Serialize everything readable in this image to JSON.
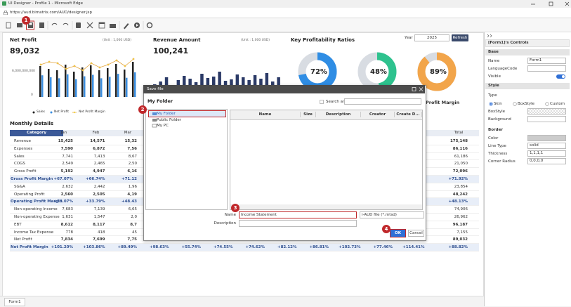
{
  "window": {
    "title": "UI Designer - Profile 1 - Microsoft Edge",
    "url": "https://aud.bimatrix.com/AUD/designer.jsp"
  },
  "callouts": [
    "1",
    "2",
    "3",
    "4"
  ],
  "dashboard": {
    "net_profit": {
      "title": "Net Profit",
      "value": "89,032",
      "unit": "(Unit : 1,000 USD)",
      "axis": [
        "6,000,000,000",
        "0"
      ],
      "legend": [
        "Sales",
        "Net Profit",
        "Net Profit Margin"
      ]
    },
    "revenue": {
      "title": "Revenue Amount",
      "value": "100,241",
      "unit": "(Unit : 1,000 USD)"
    },
    "ratios": {
      "title": "Key Profitability Ratios",
      "year_label": "Year",
      "year": "2025",
      "refresh": "Refresh",
      "donuts": [
        "72%",
        "48%",
        "89%"
      ],
      "caption": "Profit Margin"
    },
    "monthly": {
      "title": "Monthly Details",
      "header": [
        "Category",
        "Jan",
        "Feb",
        "Mar",
        null,
        null,
        null,
        null,
        null,
        null,
        null,
        null,
        null,
        "Total"
      ],
      "rows": [
        {
          "label": "Revenue",
          "style": "bold",
          "values": [
            "15,425",
            "14,571",
            "15,32",
            null,
            null,
            null,
            null,
            null,
            null,
            null,
            null,
            null,
            "175,148"
          ]
        },
        {
          "label": "Expenses",
          "style": "bold",
          "values": [
            "7,590",
            "6,872",
            "7,56",
            null,
            null,
            null,
            null,
            null,
            null,
            null,
            null,
            null,
            "86,116"
          ]
        },
        {
          "label": "Sales",
          "style": "normal",
          "values": [
            "7,741",
            "7,413",
            "8,67",
            null,
            null,
            null,
            null,
            null,
            null,
            null,
            null,
            null,
            "61,186"
          ]
        },
        {
          "label": "COGS",
          "style": "normal",
          "values": [
            "2,549",
            "2,465",
            "2,50",
            null,
            null,
            null,
            null,
            null,
            null,
            null,
            null,
            null,
            "21,050"
          ]
        },
        {
          "label": "Gross Profit",
          "style": "bold",
          "values": [
            "5,192",
            "4,947",
            "6,16",
            null,
            null,
            null,
            null,
            null,
            null,
            null,
            null,
            null,
            "72,096"
          ]
        },
        {
          "label": "Gross Profit Margin",
          "style": "margin",
          "values": [
            "+67.07%",
            "+66.74%",
            "+71.12",
            null,
            null,
            null,
            null,
            null,
            null,
            null,
            null,
            null,
            "+71.92%"
          ]
        },
        {
          "label": "SG&A",
          "style": "normal",
          "values": [
            "2,632",
            "2,442",
            "1,96",
            null,
            null,
            null,
            null,
            null,
            null,
            null,
            null,
            null,
            "23,854"
          ]
        },
        {
          "label": "Operating Profit",
          "style": "bold",
          "values": [
            "2,560",
            "2,505",
            "4,19",
            null,
            null,
            null,
            null,
            null,
            null,
            null,
            null,
            null,
            "48,242"
          ]
        },
        {
          "label": "Operating Profit Margin",
          "style": "margin",
          "values": [
            "+33.07%",
            "+33.79%",
            "+48.43",
            null,
            null,
            null,
            null,
            null,
            null,
            null,
            null,
            null,
            "+48.13%"
          ]
        },
        {
          "label": "Non-operating Income",
          "style": "normal",
          "values": [
            "7,683",
            "7,139",
            "6,65",
            null,
            null,
            null,
            null,
            null,
            null,
            null,
            null,
            null,
            "74,906"
          ]
        },
        {
          "label": "Non-operating Expense",
          "style": "normal",
          "values": [
            "1,631",
            "1,547",
            "2,0",
            null,
            null,
            null,
            null,
            null,
            null,
            null,
            null,
            null,
            "26,962"
          ]
        },
        {
          "label": "EBT",
          "style": "bold",
          "values": [
            "8,612",
            "8,117",
            "8,7",
            null,
            null,
            null,
            null,
            null,
            null,
            null,
            null,
            null,
            "96,187"
          ]
        },
        {
          "label": "Income Tax Expense",
          "style": "normal",
          "values": [
            "778",
            "418",
            "45",
            null,
            null,
            null,
            null,
            null,
            null,
            null,
            null,
            null,
            "7,155"
          ]
        },
        {
          "label": "Net Profit",
          "style": "bold",
          "values": [
            "7,834",
            "7,699",
            "7,75",
            null,
            null,
            null,
            null,
            null,
            null,
            null,
            null,
            null,
            "89,032"
          ]
        },
        {
          "label": "Net Profit Margin",
          "style": "margin",
          "values": [
            "+101.20%",
            "+103.86%",
            "+89.49%",
            "+98.63%",
            "+55.74%",
            "+74.55%",
            "+74.62%",
            "+82.12%",
            "+86.81%",
            "+102.73%",
            "+77.46%",
            "+114.41%",
            "+88.82%"
          ]
        }
      ]
    }
  },
  "dialog": {
    "title": "Save file",
    "folder": "My Folder",
    "search_all": "Search all",
    "tree": [
      "My Folder",
      "Public Folder",
      "My PC"
    ],
    "columns": [
      "Name",
      "Size",
      "Description",
      "Creator",
      "Create D..."
    ],
    "name_label": "Name",
    "name_value": "Income Statement",
    "file_type": "i-AUD file (*.mtsd)",
    "description_label": "Description",
    "ok": "OK",
    "cancel": "Cancel"
  },
  "panel": {
    "title": "[Form1]'s Controls",
    "base": {
      "header": "Base",
      "name_label": "Name",
      "name_value": "Form1",
      "language_label": "LanguageCode",
      "visible_label": "Visible"
    },
    "style": {
      "header": "Style",
      "type_label": "Type",
      "options": [
        "Skin",
        "BoxStyle",
        "Custom"
      ],
      "boxstyle_label": "BoxStyle",
      "background_label": "Background"
    },
    "border": {
      "header": "Border",
      "color_label": "Color",
      "line_type_label": "Line Type",
      "line_type": "solid",
      "thickness_label": "Thickness",
      "thickness": "1,1,1,1",
      "radius_label": "Corner Radius",
      "radius": "0,0,0,0"
    }
  },
  "tab": "Form1"
}
